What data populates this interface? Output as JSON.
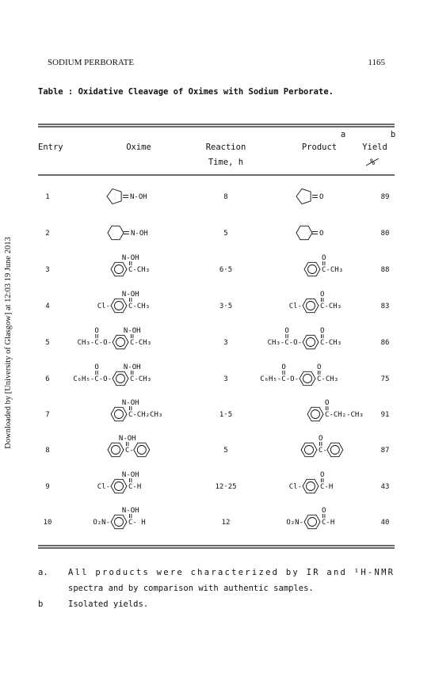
{
  "header": {
    "journal": "SODIUM PERBORATE",
    "page": "1165"
  },
  "side_note": "Downloaded by [University of Glasgow] at 12:03 19 June 2013",
  "table": {
    "title": "Table : Oxidative Cleavage of Oximes with Sodium Perborate.",
    "columns": {
      "entry": "Entry",
      "oxime": "Oxime",
      "time": [
        "Reaction",
        "Time, h"
      ],
      "product": "Product",
      "product_note": "a",
      "yield": [
        "Yield",
        "%"
      ],
      "yield_note": "b"
    },
    "rows": [
      {
        "entry": "1",
        "oxime": {
          "right": "N-OH"
        },
        "time": "8",
        "product": {
          "right": "O"
        },
        "yield": "89"
      },
      {
        "entry": "2",
        "oxime": {
          "right": "N-OH"
        },
        "time": "5",
        "product": {
          "right": "O"
        },
        "yield": "80"
      },
      {
        "entry": "3",
        "oxime": {
          "top": "N-OH",
          "right": "C-CH₃"
        },
        "time": "6·5",
        "product": {
          "top": "O",
          "right": "C-CH₃"
        },
        "yield": "88"
      },
      {
        "entry": "4",
        "oxime": {
          "left": "Cl-",
          "top": "N-OH",
          "right": "C-CH₃"
        },
        "time": "3·5",
        "product": {
          "left": "Cl-",
          "top": "O",
          "right": "C-CH₃"
        },
        "yield": "83"
      },
      {
        "entry": "5",
        "oxime": {
          "left": "CH₃-C-O-",
          "left_top": "O",
          "top": "N-OH",
          "right": "C-CH₃"
        },
        "time": "3",
        "product": {
          "left": "CH₃-C-O-",
          "left_top": "O",
          "top": "O",
          "right": "C-CH₃"
        },
        "yield": "86"
      },
      {
        "entry": "6",
        "oxime": {
          "left": "C₆H₅-C-O-",
          "left_top": "O",
          "top": "N-OH",
          "right": "C-CH₃"
        },
        "time": "3",
        "product": {
          "left": "C₆H₅-C-O-",
          "left_top": "O",
          "top": "O",
          "right": "C-CH₃"
        },
        "yield": "75"
      },
      {
        "entry": "7",
        "oxime": {
          "top": "N-OH",
          "right": "C-CH₂CH₃"
        },
        "time": "1·5",
        "product": {
          "top": "O",
          "right": "C-CH₂-CH₃"
        },
        "yield": "91"
      },
      {
        "entry": "8",
        "oxime": {
          "top": "N-OH",
          "right": "C-"
        },
        "time": "5",
        "product": {
          "top": "O",
          "right": "C-"
        },
        "yield": "87"
      },
      {
        "entry": "9",
        "oxime": {
          "left": "Cl-",
          "top": "N-OH",
          "right": "C-H"
        },
        "time": "12·25",
        "product": {
          "left": "Cl-",
          "top": "O",
          "right": "C-H"
        },
        "yield": "43"
      },
      {
        "entry": "10",
        "oxime": {
          "left": "O₂N-",
          "top": "N-OH",
          "right": "C- H"
        },
        "time": "12",
        "product": {
          "left": "O₂N-",
          "top": "O",
          "right": "C-H"
        },
        "yield": "40"
      }
    ]
  },
  "footnotes": [
    {
      "mark": "a.",
      "lines": [
        "All products were characterized by IR and ¹H-NMR",
        "spectra and by comparison with authentic samples."
      ]
    },
    {
      "mark": "b",
      "lines": [
        "Isolated yields."
      ]
    }
  ]
}
